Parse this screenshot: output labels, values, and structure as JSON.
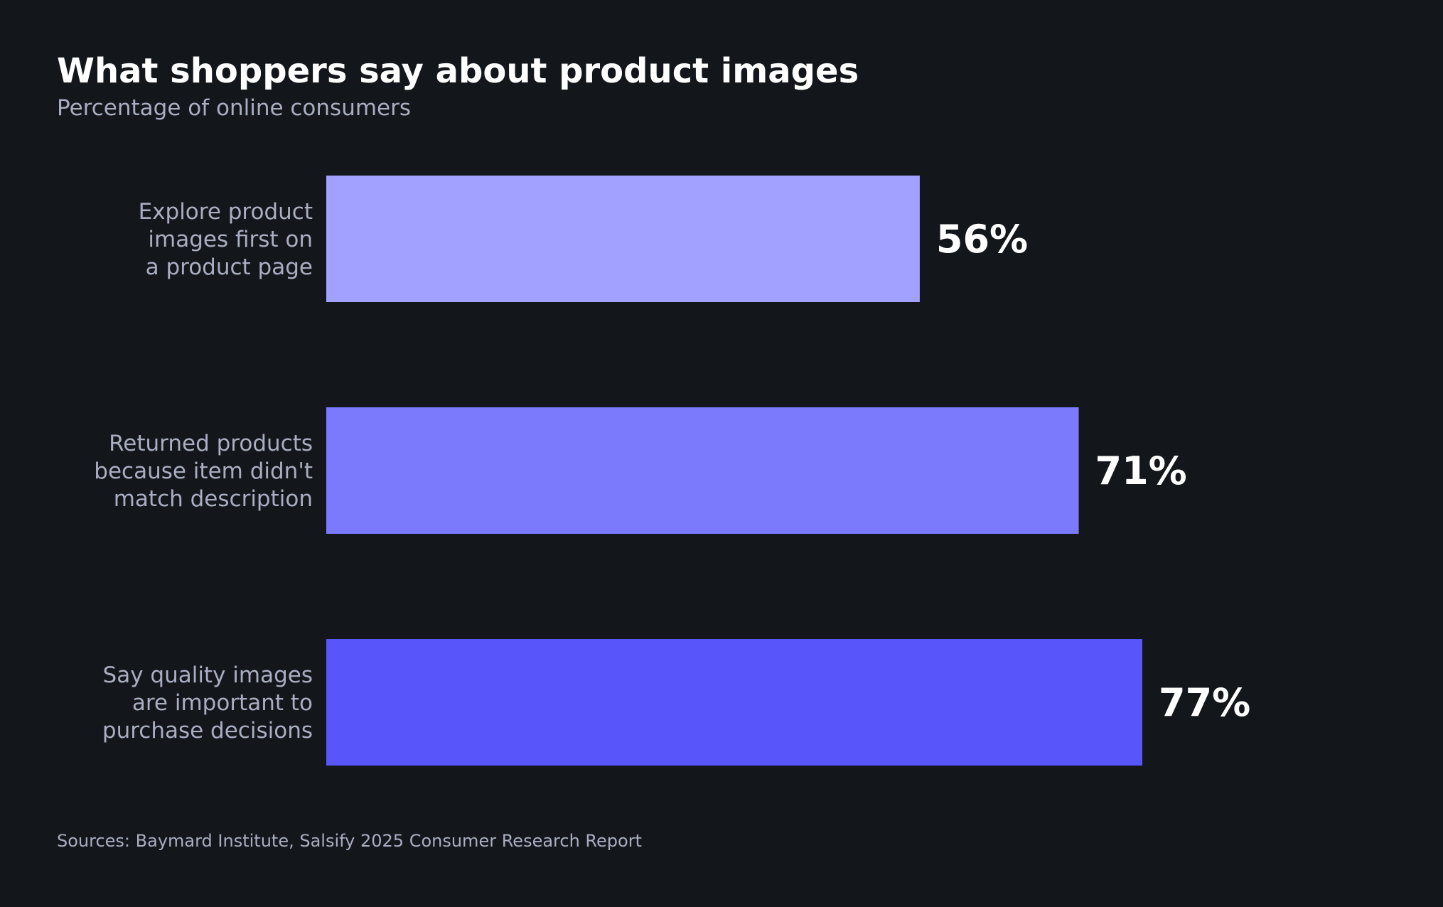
{
  "chart_data": {
    "type": "bar",
    "orientation": "horizontal",
    "title": "What shoppers say about product images",
    "subtitle": "Percentage of online consumers",
    "categories": [
      [
        "Explore product",
        "images first on",
        "a product page"
      ],
      [
        "Returned products",
        "because item didn't",
        "match description"
      ],
      [
        "Say quality images",
        "are important to",
        "purchase decisions"
      ]
    ],
    "values": [
      56,
      71,
      77
    ],
    "value_labels": [
      "56%",
      "71%",
      "77%"
    ],
    "colors": [
      "#a3a1ff",
      "#7b79fc",
      "#5855fb"
    ],
    "xlim": [
      0,
      100
    ],
    "grid": false,
    "legend": "none"
  },
  "source": "Sources: Baymard Institute, Salsify 2025 Consumer Research Report"
}
